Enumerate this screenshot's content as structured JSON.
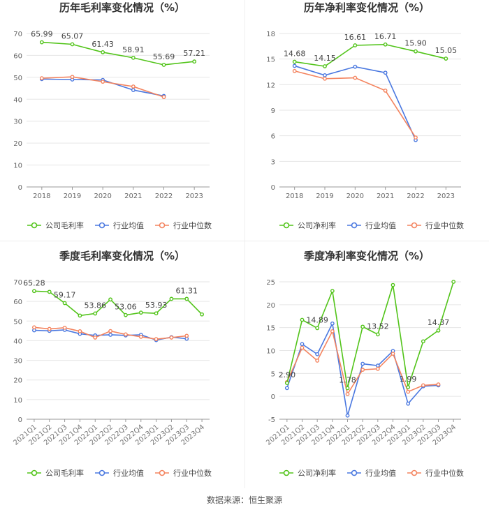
{
  "footer": {
    "source": "数据来源：恒生聚源"
  },
  "colors": {
    "company": "#52c41a",
    "industry_avg": "#4a78e0",
    "industry_median": "#f4845f"
  },
  "chart_data": [
    {
      "type": "line",
      "title": "历年毛利率变化情况（%）",
      "categories": [
        "2018",
        "2019",
        "2020",
        "2021",
        "2022",
        "2023"
      ],
      "ylim": [
        0,
        70
      ],
      "yticks": [
        0,
        10,
        20,
        30,
        40,
        50,
        60,
        70
      ],
      "ytick_labels": [
        "0",
        "10",
        "20",
        "30",
        "40",
        "50",
        "60",
        "70"
      ],
      "series": [
        {
          "name": "公司毛利率",
          "color_key": "company",
          "values": [
            65.99,
            65.07,
            61.43,
            58.91,
            55.69,
            57.21
          ],
          "labels": [
            "65.99",
            "65.07",
            "61.43",
            "58.91",
            "55.69",
            "57.21"
          ]
        },
        {
          "name": "行业均值",
          "color_key": "industry_avg",
          "values": [
            49.2,
            49.0,
            48.8,
            44.2,
            41.5,
            null
          ]
        },
        {
          "name": "行业中位数",
          "color_key": "industry_median",
          "values": [
            49.6,
            50.2,
            48.0,
            45.8,
            41.0,
            null
          ]
        }
      ]
    },
    {
      "type": "line",
      "title": "历年净利率变化情况（%）",
      "categories": [
        "2018",
        "2019",
        "2020",
        "2021",
        "2022",
        "2023"
      ],
      "ylim": [
        0,
        18
      ],
      "yticks": [
        0,
        3,
        6,
        9,
        12,
        15,
        18
      ],
      "ytick_labels": [
        "0",
        "3",
        "6",
        "9",
        "12",
        "15",
        "18"
      ],
      "series": [
        {
          "name": "公司净利率",
          "color_key": "company",
          "values": [
            14.68,
            14.15,
            16.61,
            16.71,
            15.9,
            15.05
          ],
          "labels": [
            "14.68",
            "14.15",
            "16.61",
            "16.71",
            "15.90",
            "15.05"
          ]
        },
        {
          "name": "行业均值",
          "color_key": "industry_avg",
          "values": [
            14.2,
            13.1,
            14.1,
            13.4,
            5.5,
            null
          ]
        },
        {
          "name": "行业中位数",
          "color_key": "industry_median",
          "values": [
            13.6,
            12.7,
            12.8,
            11.3,
            5.8,
            null
          ]
        }
      ]
    },
    {
      "type": "line",
      "title": "季度毛利率变化情况（%）",
      "categories": [
        "2021Q1",
        "2021Q2",
        "2021Q3",
        "2021Q4",
        "2022Q1",
        "2022Q2",
        "2022Q3",
        "2022Q4",
        "2023Q1",
        "2023Q2",
        "2023Q3",
        "2023Q4"
      ],
      "ylim": [
        0,
        70
      ],
      "yticks": [
        0,
        10,
        20,
        30,
        40,
        50,
        60,
        70
      ],
      "ytick_labels": [
        "0",
        "10",
        "20",
        "30",
        "40",
        "50",
        "60",
        "70"
      ],
      "series": [
        {
          "name": "公司毛利率",
          "color_key": "company",
          "values": [
            65.28,
            64.9,
            59.17,
            52.8,
            53.86,
            61.0,
            53.06,
            54.3,
            53.93,
            61.31,
            61.31,
            53.4
          ],
          "labels": [
            "65.28",
            null,
            "59.17",
            null,
            "53.86",
            null,
            "53.06",
            null,
            "53.93",
            null,
            "61.31",
            null
          ]
        },
        {
          "name": "行业均值",
          "color_key": "industry_avg",
          "values": [
            45.3,
            45.0,
            45.5,
            43.5,
            42.7,
            43.0,
            42.7,
            43.0,
            40.3,
            41.8,
            41.0,
            null
          ]
        },
        {
          "name": "行业中位数",
          "color_key": "industry_median",
          "values": [
            46.8,
            46.0,
            46.6,
            44.8,
            41.6,
            44.9,
            43.2,
            42.0,
            40.8,
            41.6,
            42.5,
            null
          ]
        }
      ]
    },
    {
      "type": "line",
      "title": "季度净利率变化情况（%）",
      "categories": [
        "2021Q1",
        "2021Q2",
        "2021Q3",
        "2021Q4",
        "2022Q1",
        "2022Q2",
        "2022Q3",
        "2022Q4",
        "2023Q1",
        "2023Q2",
        "2023Q3",
        "2023Q4"
      ],
      "ylim": [
        -5,
        25
      ],
      "yticks": [
        -5,
        0,
        5,
        10,
        15,
        20,
        25
      ],
      "ytick_labels": [
        "-5",
        "0",
        "5",
        "10",
        "15",
        "20",
        "25"
      ],
      "series": [
        {
          "name": "公司净利率",
          "color_key": "company",
          "values": [
            2.9,
            16.7,
            14.89,
            23.0,
            1.78,
            15.2,
            13.52,
            24.3,
            1.99,
            12.0,
            14.37,
            25.0
          ],
          "labels": [
            "2.90",
            null,
            "14.89",
            null,
            "1.78",
            null,
            "13.52",
            null,
            "1.99",
            null,
            "14.37",
            null
          ]
        },
        {
          "name": "行业均值",
          "color_key": "industry_avg",
          "values": [
            1.8,
            11.4,
            9.2,
            15.9,
            -4.2,
            7.1,
            6.7,
            9.9,
            -1.6,
            2.2,
            2.4,
            null
          ]
        },
        {
          "name": "行业中位数",
          "color_key": "industry_median",
          "values": [
            3.1,
            10.6,
            7.8,
            14.2,
            0.5,
            5.8,
            6.0,
            9.3,
            1.0,
            2.4,
            2.6,
            null
          ]
        }
      ]
    }
  ]
}
